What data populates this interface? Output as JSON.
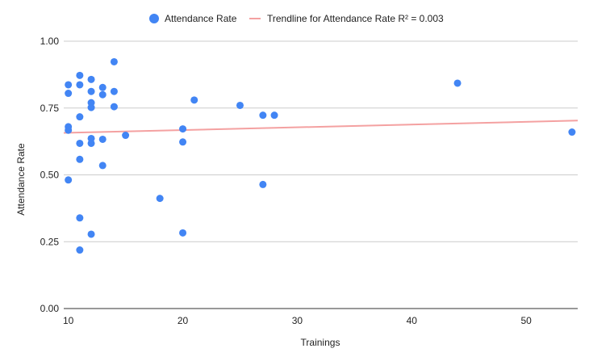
{
  "chart_data": {
    "type": "scatter",
    "xlabel": "Trainings",
    "ylabel": "Attendance Rate",
    "xlim": [
      9.6,
      54.5
    ],
    "ylim": [
      0,
      1
    ],
    "x_ticks": [
      "10",
      "20",
      "30",
      "40",
      "50"
    ],
    "y_ticks": [
      "0.00",
      "0.25",
      "0.50",
      "0.75",
      "1.00"
    ],
    "grid": true,
    "legend_position": "top",
    "series": [
      {
        "name": "Attendance Rate",
        "color": "#4285f4",
        "marker": "circle",
        "points": [
          {
            "x": 10,
            "y": 0.837
          },
          {
            "x": 10,
            "y": 0.805
          },
          {
            "x": 10,
            "y": 0.68
          },
          {
            "x": 10,
            "y": 0.667
          },
          {
            "x": 10,
            "y": 0.481
          },
          {
            "x": 11,
            "y": 0.872
          },
          {
            "x": 11,
            "y": 0.837
          },
          {
            "x": 11,
            "y": 0.717
          },
          {
            "x": 11,
            "y": 0.618
          },
          {
            "x": 11,
            "y": 0.558
          },
          {
            "x": 11,
            "y": 0.339
          },
          {
            "x": 11,
            "y": 0.219
          },
          {
            "x": 12,
            "y": 0.857
          },
          {
            "x": 12,
            "y": 0.812
          },
          {
            "x": 12,
            "y": 0.77
          },
          {
            "x": 12,
            "y": 0.752
          },
          {
            "x": 12,
            "y": 0.636
          },
          {
            "x": 12,
            "y": 0.618
          },
          {
            "x": 12,
            "y": 0.278
          },
          {
            "x": 13,
            "y": 0.827
          },
          {
            "x": 13,
            "y": 0.8
          },
          {
            "x": 13,
            "y": 0.633
          },
          {
            "x": 13,
            "y": 0.535
          },
          {
            "x": 14,
            "y": 0.923
          },
          {
            "x": 14,
            "y": 0.812
          },
          {
            "x": 14,
            "y": 0.755
          },
          {
            "x": 15,
            "y": 0.648
          },
          {
            "x": 18,
            "y": 0.412
          },
          {
            "x": 20,
            "y": 0.672
          },
          {
            "x": 20,
            "y": 0.623
          },
          {
            "x": 20,
            "y": 0.283
          },
          {
            "x": 21,
            "y": 0.78
          },
          {
            "x": 25,
            "y": 0.76
          },
          {
            "x": 27,
            "y": 0.723
          },
          {
            "x": 27,
            "y": 0.464
          },
          {
            "x": 28,
            "y": 0.723
          },
          {
            "x": 44,
            "y": 0.843
          },
          {
            "x": 54,
            "y": 0.66
          }
        ]
      }
    ],
    "trendline": {
      "name": "Trendline for Attendance Rate R² = 0.003",
      "color": "#f4a1a1",
      "x": [
        9.6,
        54.5
      ],
      "y": [
        0.657,
        0.703
      ]
    }
  }
}
